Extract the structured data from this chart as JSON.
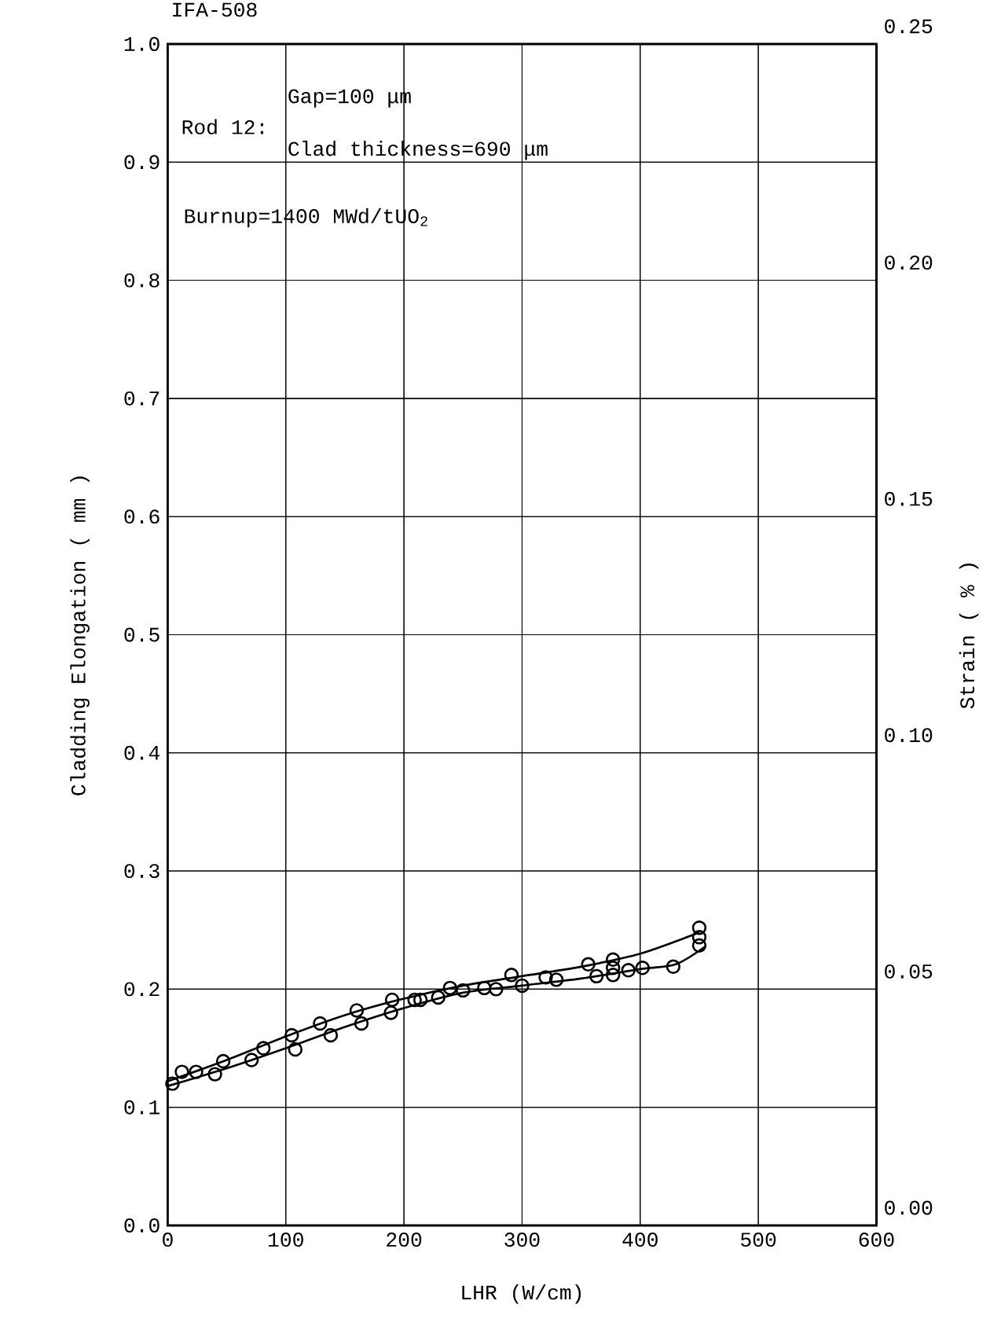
{
  "chart_data": {
    "type": "scatter",
    "title": "IFA-508",
    "xlabel": "LHR (W/cm)",
    "ylabel": "Cladding Elongation ( mm )",
    "y2label": "Strain ( % )",
    "annotations": [
      "Rod 12:",
      "Gap=100 μm",
      "Clad thickness=690 μm",
      "Burnup=1400 MWd/tUO$_{2}$"
    ],
    "xlim": [
      0,
      600
    ],
    "xticks": [
      0,
      100,
      200,
      300,
      400,
      500,
      600
    ],
    "ylim": [
      0,
      1.0
    ],
    "yticks": [
      {
        "value": 0,
        "label": "0.0"
      },
      0.1,
      0.2,
      0.3,
      0.4,
      0.5,
      0.6,
      0.7,
      0.8,
      0.9,
      {
        "value": 1.0,
        "label": "1.0"
      }
    ],
    "y2lim": [
      0,
      0.25
    ],
    "y2ticks": [
      {
        "value": 0,
        "label": "0.00"
      },
      0.05,
      {
        "value": 0.1,
        "label": "0.10"
      },
      0.15,
      {
        "value": 0.2,
        "label": "0.20"
      },
      0.25
    ],
    "grid": true,
    "series": [
      {
        "type": "scatter",
        "marker": "circle",
        "color": "#000000",
        "x": [
          4,
          12,
          24,
          40,
          47,
          71,
          81,
          105,
          108,
          129,
          138,
          160,
          164,
          190,
          189,
          209,
          214,
          229,
          239,
          250,
          268,
          278,
          291,
          300,
          320,
          329,
          356,
          363,
          377,
          377,
          377,
          390,
          402,
          428,
          450,
          450,
          450
        ],
        "values": [
          0.12,
          0.13,
          0.13,
          0.128,
          0.139,
          0.14,
          0.15,
          0.161,
          0.149,
          0.171,
          0.161,
          0.182,
          0.171,
          0.191,
          0.18,
          0.191,
          0.191,
          0.193,
          0.201,
          0.199,
          0.201,
          0.2,
          0.212,
          0.203,
          0.21,
          0.208,
          0.221,
          0.211,
          0.225,
          0.218,
          0.212,
          0.216,
          0.218,
          0.219,
          0.252,
          0.244,
          0.237
        ]
      },
      {
        "type": "line",
        "marker": "none",
        "line_style": "solid",
        "color": "#000000",
        "x": [
          0,
          50,
          100,
          150,
          200,
          250,
          300,
          350,
          400,
          450
        ],
        "values": [
          0.122,
          0.14,
          0.16,
          0.178,
          0.192,
          0.203,
          0.211,
          0.219,
          0.23,
          0.248
        ]
      },
      {
        "type": "line",
        "marker": "none",
        "line_style": "solid",
        "color": "#000000",
        "x": [
          0,
          50,
          100,
          150,
          200,
          250,
          300,
          350,
          400,
          430,
          455
        ],
        "values": [
          0.118,
          0.133,
          0.15,
          0.168,
          0.184,
          0.197,
          0.203,
          0.209,
          0.217,
          0.221,
          0.236
        ]
      }
    ]
  }
}
